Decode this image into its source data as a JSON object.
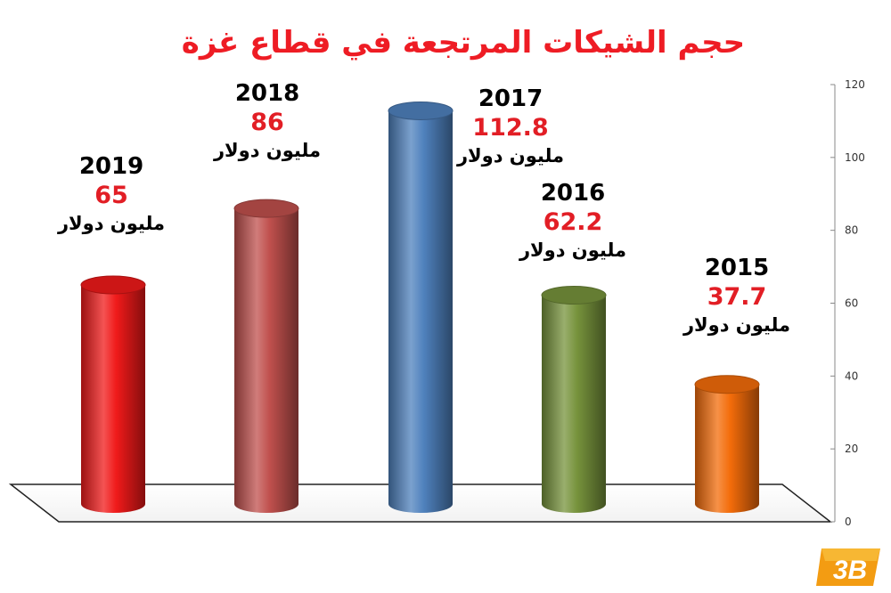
{
  "chart_data": {
    "type": "bar",
    "title": "حجم الشيكات المرتجعة في قطاع غزة",
    "categories": [
      "2019",
      "2018",
      "2017",
      "2016",
      "2015"
    ],
    "values": [
      65,
      86,
      112.8,
      62.2,
      37.7
    ],
    "value_labels": [
      "65",
      "86",
      "112.8",
      "62.2",
      "37.7"
    ],
    "unit_label": "مليون دولار",
    "colors": [
      "#f01a1a",
      "#c0504d",
      "#4f81bd",
      "#77933c",
      "#f36c0a"
    ],
    "y_ticks": [
      "0",
      "20",
      "40",
      "60",
      "80",
      "100",
      "120"
    ],
    "ylim": [
      0,
      120
    ],
    "grid": false
  },
  "logo_text": "3B"
}
